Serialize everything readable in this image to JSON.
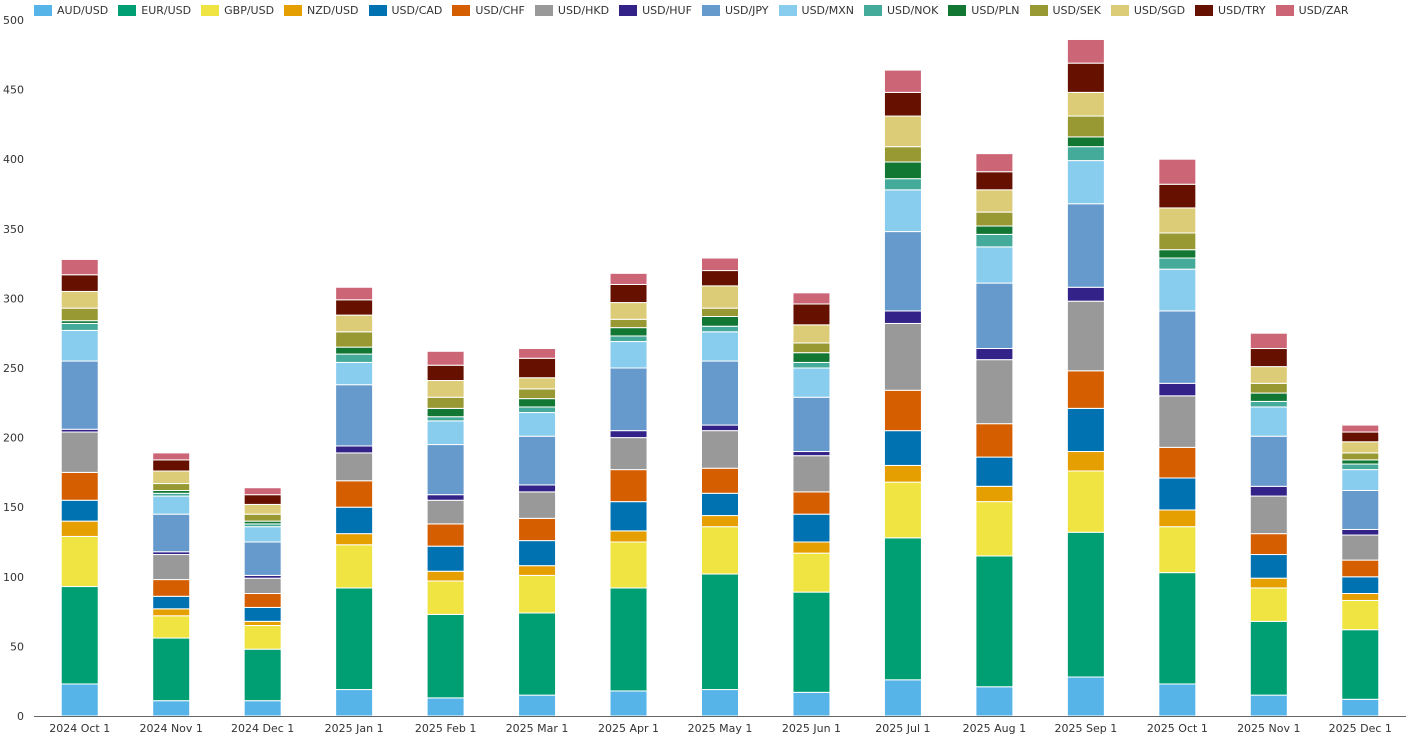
{
  "chart_data": {
    "type": "bar",
    "stacked": true,
    "title": "",
    "xlabel": "",
    "ylabel": "",
    "ylim": [
      0,
      500
    ],
    "yticks": [
      0,
      50,
      100,
      150,
      200,
      250,
      300,
      350,
      400,
      450,
      500
    ],
    "grid": false,
    "legend_position": "top",
    "categories": [
      "2024 Oct 1",
      "2024 Nov 1",
      "2024 Dec 1",
      "2025 Jan 1",
      "2025 Feb 1",
      "2025 Mar 1",
      "2025 Apr 1",
      "2025 May 1",
      "2025 Jun 1",
      "2025 Jul 1",
      "2025 Aug 1",
      "2025 Sep 1",
      "2025 Oct 1",
      "2025 Nov 1",
      "2025 Dec 1"
    ],
    "series": [
      {
        "name": "AUD/USD",
        "color": "#56b4e9",
        "values": [
          23,
          11,
          11,
          19,
          13,
          15,
          18,
          19,
          17,
          26,
          21,
          28,
          23,
          15,
          12
        ]
      },
      {
        "name": "EUR/USD",
        "color": "#009e73",
        "values": [
          70,
          45,
          37,
          73,
          60,
          59,
          74,
          83,
          72,
          102,
          94,
          104,
          80,
          53,
          50
        ]
      },
      {
        "name": "GBP/USD",
        "color": "#f0e442",
        "values": [
          36,
          16,
          17,
          31,
          24,
          27,
          33,
          34,
          28,
          40,
          39,
          44,
          33,
          24,
          21
        ]
      },
      {
        "name": "NZD/USD",
        "color": "#e69f00",
        "values": [
          11,
          5,
          3,
          8,
          7,
          7,
          8,
          8,
          8,
          12,
          11,
          14,
          12,
          7,
          5
        ]
      },
      {
        "name": "USD/CAD",
        "color": "#0072b2",
        "values": [
          15,
          9,
          10,
          19,
          18,
          18,
          21,
          16,
          20,
          25,
          21,
          31,
          23,
          17,
          12
        ]
      },
      {
        "name": "USD/CHF",
        "color": "#d55e00",
        "values": [
          20,
          12,
          10,
          19,
          16,
          16,
          23,
          18,
          16,
          29,
          24,
          27,
          22,
          15,
          12
        ]
      },
      {
        "name": "USD/HKD",
        "color": "#999999",
        "values": [
          29,
          18,
          11,
          20,
          17,
          19,
          23,
          27,
          26,
          48,
          46,
          50,
          37,
          27,
          18
        ]
      },
      {
        "name": "USD/HUF",
        "color": "#332288",
        "values": [
          2,
          2,
          2,
          5,
          4,
          5,
          5,
          4,
          3,
          9,
          8,
          10,
          9,
          7,
          4
        ]
      },
      {
        "name": "USD/JPY",
        "color": "#6699cc",
        "values": [
          49,
          27,
          24,
          44,
          36,
          35,
          45,
          46,
          39,
          57,
          47,
          60,
          52,
          36,
          28
        ]
      },
      {
        "name": "USD/MXN",
        "color": "#88ccee",
        "values": [
          22,
          13,
          11,
          16,
          17,
          17,
          19,
          21,
          21,
          30,
          26,
          31,
          30,
          21,
          15
        ]
      },
      {
        "name": "USD/NOK",
        "color": "#44aa99",
        "values": [
          5,
          2,
          2,
          6,
          3,
          4,
          4,
          4,
          4,
          8,
          9,
          10,
          8,
          4,
          4
        ]
      },
      {
        "name": "USD/PLN",
        "color": "#117733",
        "values": [
          2,
          2,
          2,
          5,
          6,
          6,
          6,
          7,
          7,
          12,
          6,
          7,
          6,
          6,
          3
        ]
      },
      {
        "name": "USD/SEK",
        "color": "#999933",
        "values": [
          9,
          5,
          5,
          11,
          8,
          7,
          6,
          6,
          7,
          11,
          10,
          15,
          12,
          7,
          5
        ]
      },
      {
        "name": "USD/SGD",
        "color": "#ddcc77",
        "values": [
          12,
          9,
          7,
          12,
          12,
          8,
          12,
          16,
          13,
          22,
          16,
          17,
          18,
          12,
          8
        ]
      },
      {
        "name": "USD/TRY",
        "color": "#661100",
        "values": [
          12,
          8,
          7,
          11,
          11,
          14,
          13,
          11,
          15,
          17,
          13,
          21,
          17,
          13,
          7
        ]
      },
      {
        "name": "USD/ZAR",
        "color": "#cc6677",
        "values": [
          11,
          5,
          5,
          9,
          10,
          7,
          8,
          9,
          8,
          16,
          13,
          17,
          18,
          11,
          5
        ]
      }
    ]
  }
}
